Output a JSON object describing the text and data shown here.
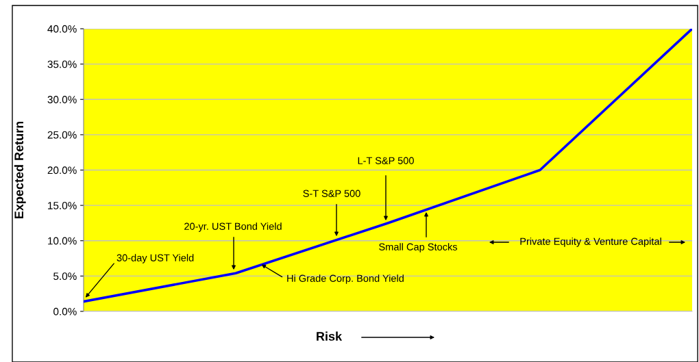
{
  "chart_data": {
    "type": "line",
    "ylabel": "Expected Return",
    "xlabel": "Risk",
    "categories": [
      null,
      null,
      null,
      null,
      null
    ],
    "series": [
      {
        "color": "#0000ff",
        "values": [
          1.4,
          5.4,
          12.5,
          20.0,
          40.0
        ]
      }
    ],
    "ylim": [
      0,
      40
    ],
    "yticks": [
      {
        "value": 0,
        "label": "0.0%"
      },
      {
        "value": 5,
        "label": "5.0%"
      },
      {
        "value": 10,
        "label": "10.0%"
      },
      {
        "value": 15,
        "label": "15.0%"
      },
      {
        "value": 20,
        "label": "20.0%"
      },
      {
        "value": 25,
        "label": "25.0%"
      },
      {
        "value": 30,
        "label": "30.0%"
      },
      {
        "value": 35,
        "label": "35.0%"
      },
      {
        "value": 40,
        "label": "40.0%"
      }
    ],
    "grid": "y",
    "marker": "none",
    "line_style": "solid",
    "annotations": [
      "30-day UST Yield",
      "20-yr. UST Bond Yield",
      "Hi Grade Corp. Bond Yield",
      "S-T S&P 500",
      "L-T S&P 500",
      "Small Cap Stocks",
      "Private Equity & Venture Capital"
    ]
  }
}
